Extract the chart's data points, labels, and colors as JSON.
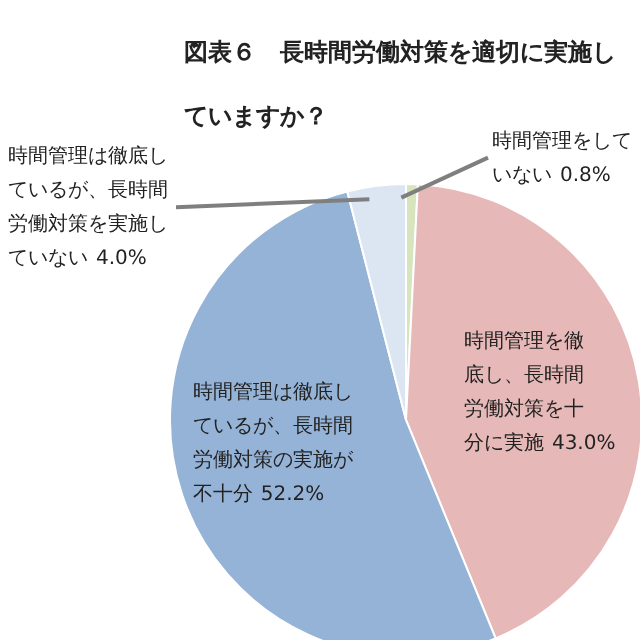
{
  "chart_data": {
    "type": "pie",
    "title": "図表６　長時間労働対策を適切に実施していますか？",
    "categories": [
      "時間管理をしていない",
      "時間管理を徹底し、長時間労働対策を十分に実施",
      "時間管理は徹底しているが、長時間労働対策の実施が不十分",
      "時間管理は徹底しているが、長時間労働対策を実施していない"
    ],
    "values": [
      0.8,
      43.0,
      52.2,
      4.0
    ],
    "colors": [
      "#d7e4bd",
      "#e6b9b8",
      "#95b3d7",
      "#dce6f2"
    ],
    "value_labels": [
      "0.8%",
      "43.0%",
      "52.2%",
      "4.0%"
    ],
    "legend": false
  }
}
